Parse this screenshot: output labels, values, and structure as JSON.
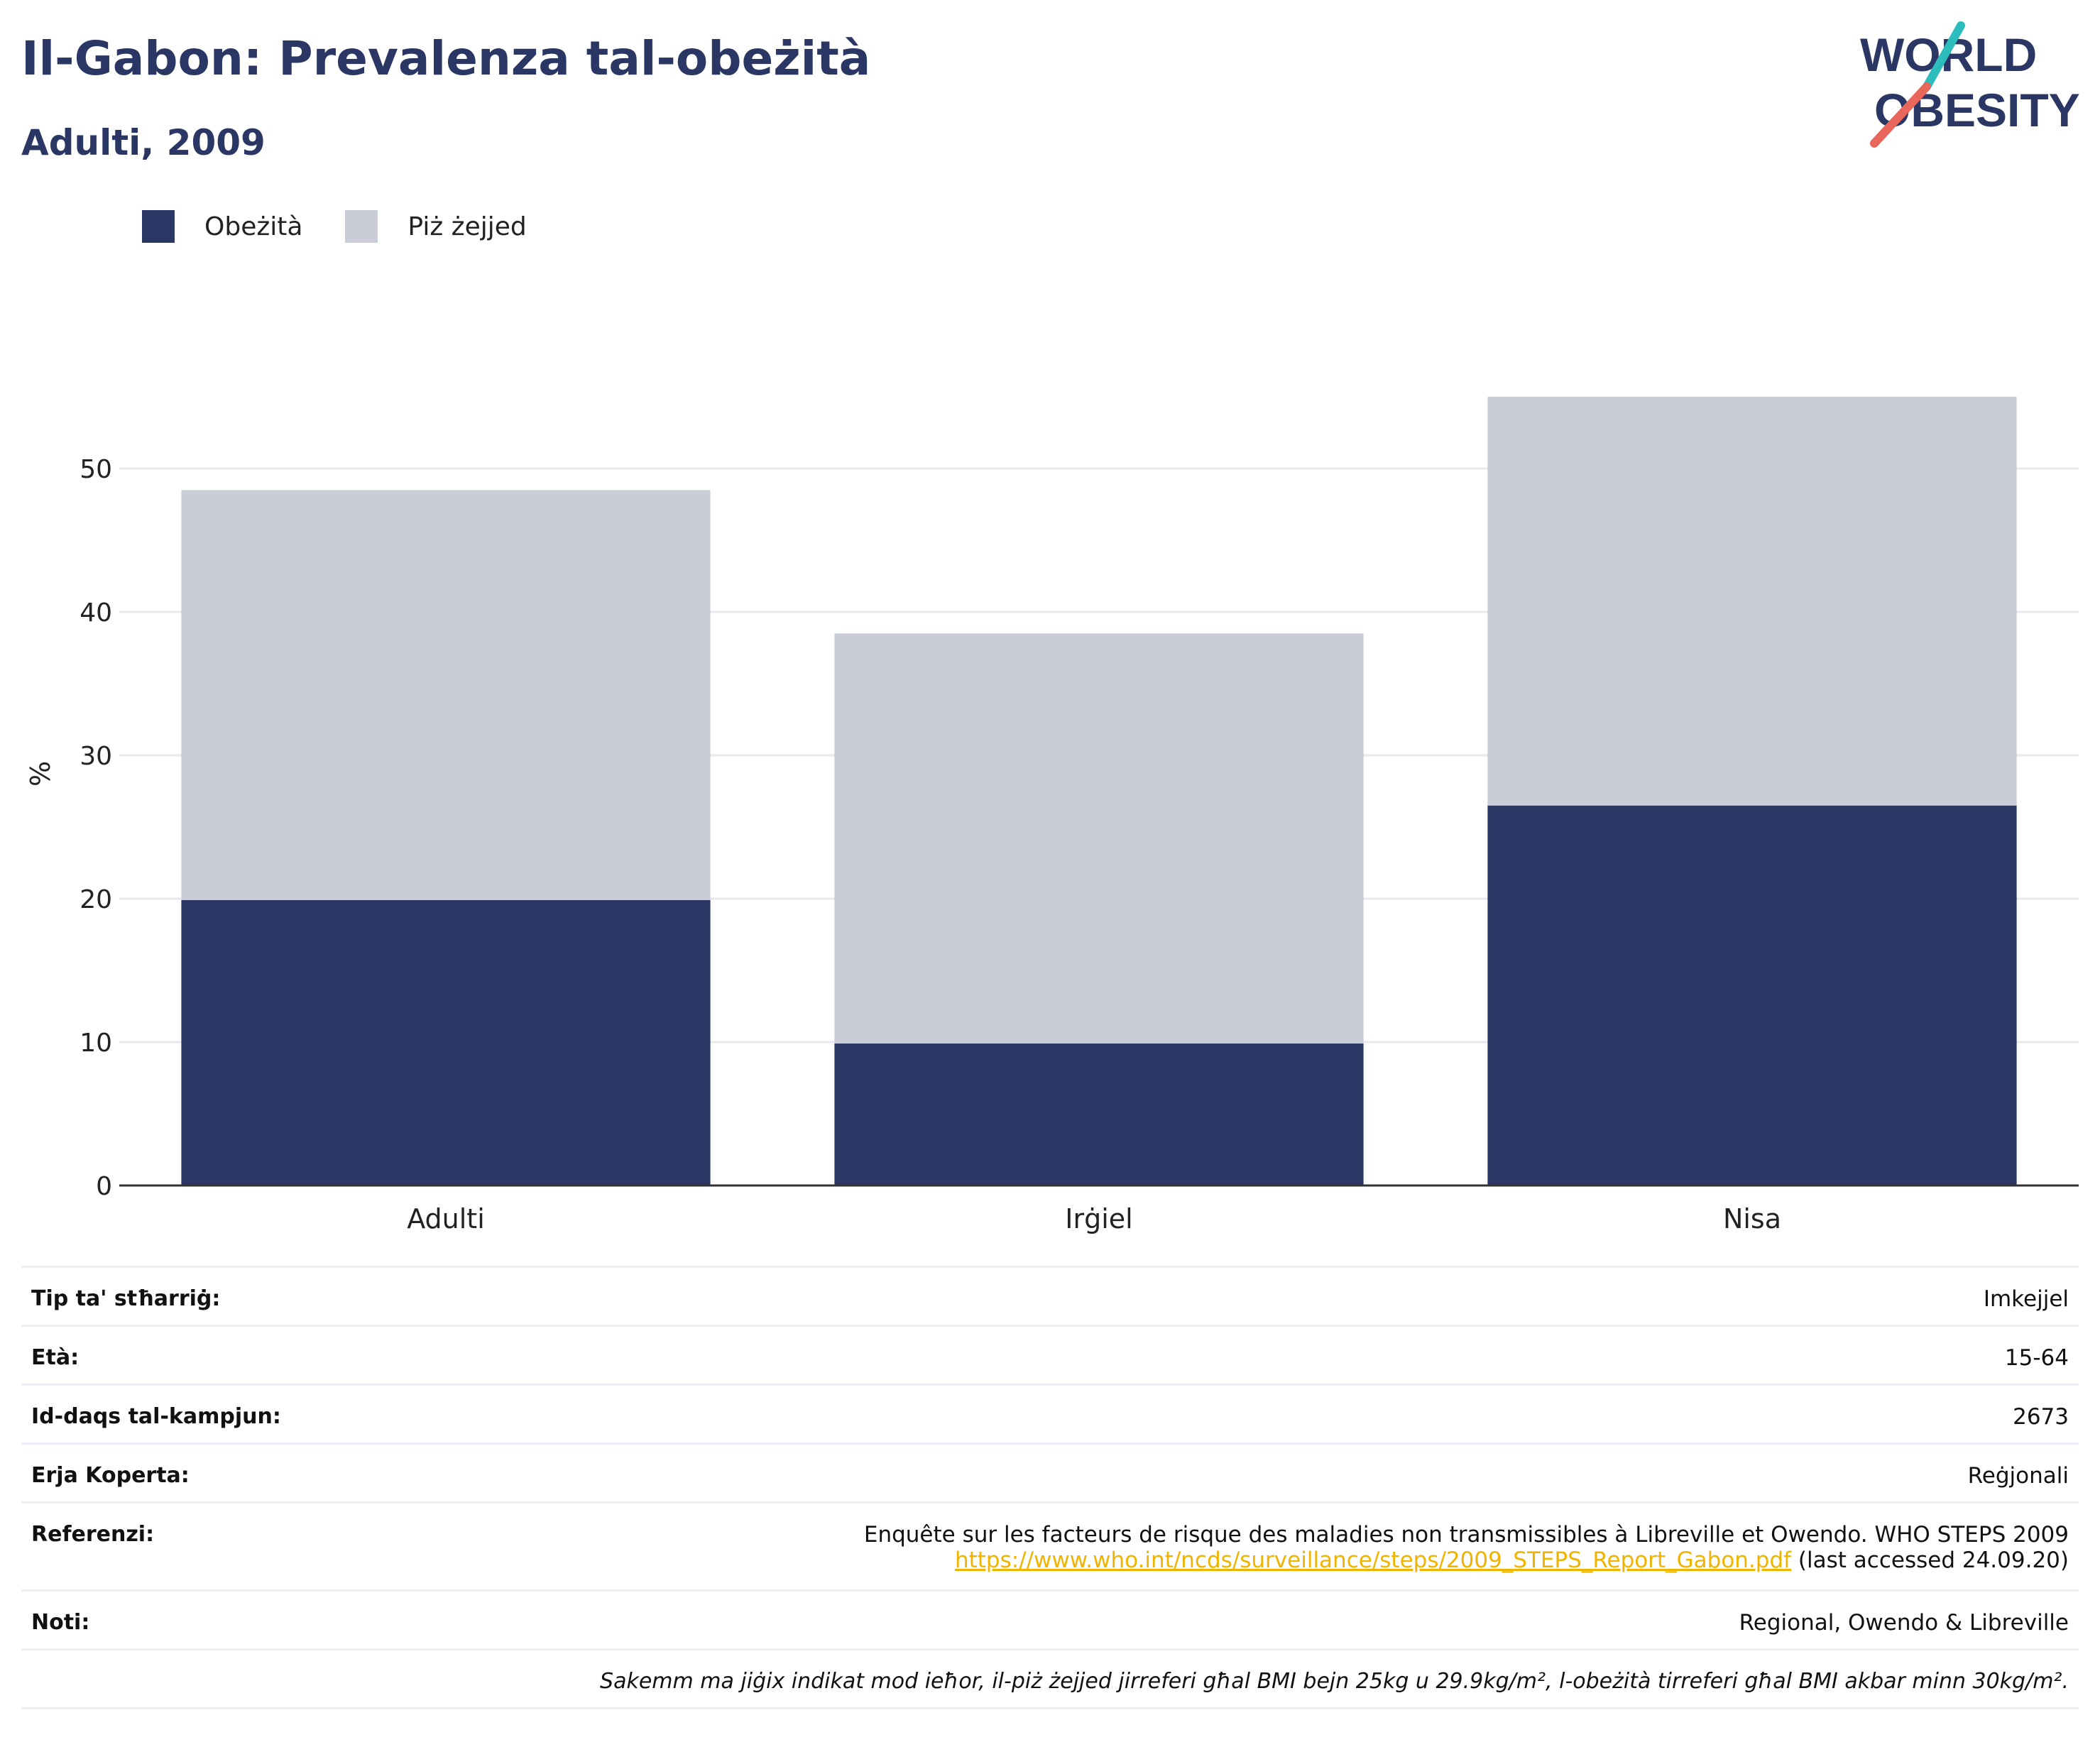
{
  "header": {
    "title": "Il-Gabon: Prevalenza tal-obeżità",
    "subtitle": "Adulti, 2009"
  },
  "logo": {
    "line1": "WORLD",
    "line2": "OBESITY"
  },
  "colors": {
    "obesity": "#2a3664",
    "overweight": "#cacdd8",
    "accent": "#f0b400",
    "logo_teal": "#2cbcbc",
    "logo_red": "#e8665a"
  },
  "chart_data": {
    "type": "bar",
    "stacked": true,
    "categories": [
      "Adulti",
      "Irġiel",
      "Nisa"
    ],
    "series": [
      {
        "name": "Obeżità",
        "color": "#2a3664",
        "values": [
          19.9,
          9.9,
          26.5
        ]
      },
      {
        "name": "Piż żejjed",
        "color": "#cacdd8",
        "values": [
          28.6,
          28.6,
          28.5
        ]
      }
    ],
    "ylabel": "%",
    "xlabel": "",
    "ylim": [
      0,
      60
    ],
    "yticks": [
      0,
      10,
      20,
      30,
      40,
      50
    ],
    "grid": true,
    "legend": "top-left"
  },
  "info": {
    "rows": [
      {
        "key": "Tip ta' stħarriġ:",
        "value": "Imkejjel"
      },
      {
        "key": "Età:",
        "value": "15-64"
      },
      {
        "key": "Id-daqs tal-kampjun:",
        "value": "2673"
      },
      {
        "key": "Erja Koperta:",
        "value": "Reġjonali"
      }
    ],
    "ref_key": "Referenzi:",
    "ref_text": "Enquête sur les facteurs de risque des maladies non transmissibles à Libreville et Owendo. WHO STEPS 2009",
    "ref_link": "https://www.who.int/ncds/surveillance/steps/2009_STEPS_Report_Gabon.pdf",
    "ref_access": " (last accessed 24.09.20)",
    "notes_key": "Noti:",
    "notes_value": "Regional, Owendo & Libreville",
    "footnote": "Sakemm ma jiġix indikat mod ieħor, il-piż żejjed jirreferi għal BMI bejn 25kg u 29.9kg/m², l-obeżità tirreferi għal BMI akbar minn 30kg/m²."
  }
}
